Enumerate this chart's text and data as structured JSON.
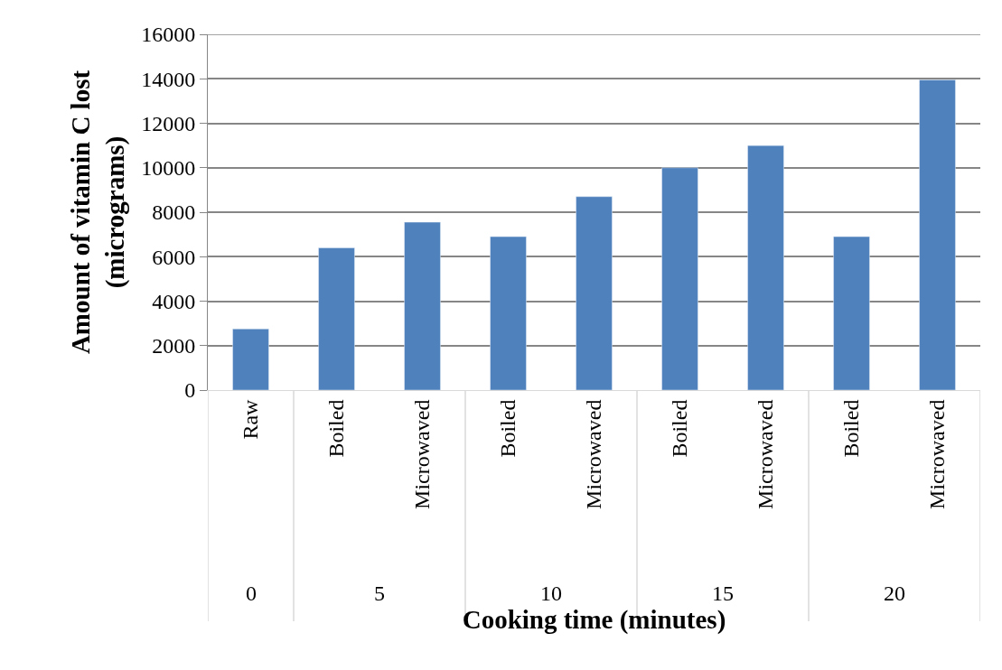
{
  "chart_data": {
    "type": "bar",
    "xlabel": "Cooking time (minutes)",
    "ylabel": "Amount of vitamin C lost\n(micrograms)",
    "categories": [
      "Raw",
      "Boiled",
      "Microwaved",
      "Boiled",
      "Microwaved",
      "Boiled",
      "Microwaved",
      "Boiled",
      "Microwaved"
    ],
    "values": [
      2750,
      6400,
      7550,
      6900,
      8700,
      10000,
      11000,
      6900,
      13950
    ],
    "color": "#4f81bd",
    "ylim": [
      0,
      16000
    ],
    "yticks": [
      0,
      2000,
      4000,
      6000,
      8000,
      10000,
      12000,
      14000,
      16000
    ],
    "grid": "y",
    "annotations": [
      "0",
      "5",
      "10",
      "15",
      "20"
    ]
  }
}
